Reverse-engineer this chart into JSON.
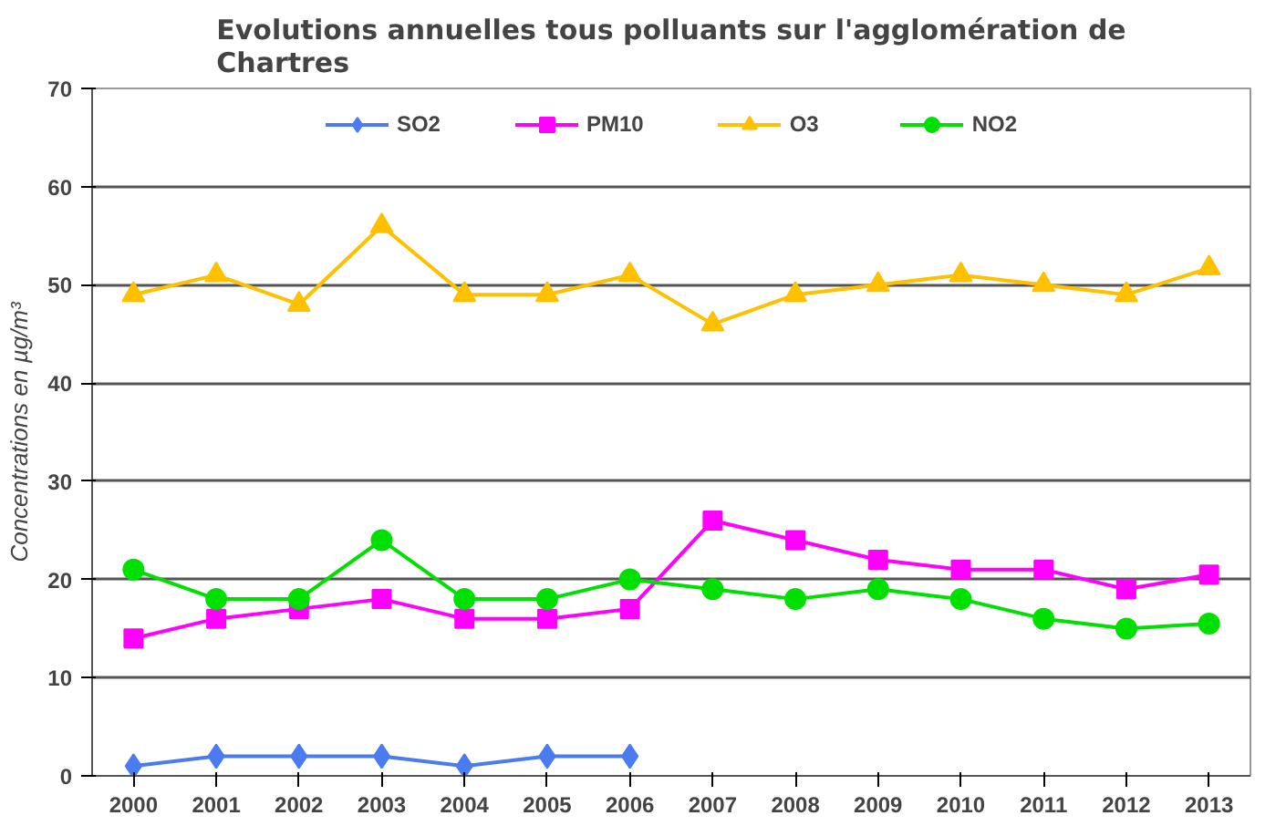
{
  "chart_data": {
    "type": "line",
    "title": "Evolutions annuelles tous polluants sur l'agglomération de Chartres",
    "ylabel": "Concentrations en µg/m³",
    "categories": [
      "2000",
      "2001",
      "2002",
      "2003",
      "2004",
      "2005",
      "2006",
      "2007",
      "2008",
      "2009",
      "2010",
      "2011",
      "2012",
      "2013"
    ],
    "series": [
      {
        "name": "SO2",
        "color": "#4a7cf0",
        "marker": "diamond",
        "values": [
          1,
          2,
          2,
          2,
          1,
          2,
          2,
          null,
          null,
          null,
          null,
          null,
          null,
          null
        ]
      },
      {
        "name": "PM10",
        "color": "#ff00ff",
        "marker": "square",
        "values": [
          14,
          16,
          17,
          18,
          16,
          16,
          17,
          26,
          24,
          22,
          21,
          21,
          19,
          20.5
        ]
      },
      {
        "name": "O3",
        "color": "#ffc000",
        "marker": "triangle",
        "values": [
          49,
          51,
          48,
          56,
          49,
          49,
          51,
          46,
          49,
          50,
          51,
          50,
          49,
          51.7
        ]
      },
      {
        "name": "NO2",
        "color": "#00e000",
        "marker": "circle",
        "values": [
          21,
          18,
          18,
          24,
          18,
          18,
          20,
          19,
          18,
          19,
          18,
          16,
          15,
          15.5
        ]
      }
    ],
    "ylim": [
      0,
      70
    ],
    "yticks": [
      0,
      10,
      20,
      30,
      40,
      50,
      60,
      70
    ],
    "grid": "y",
    "legend": "top",
    "line_style": "solid"
  }
}
